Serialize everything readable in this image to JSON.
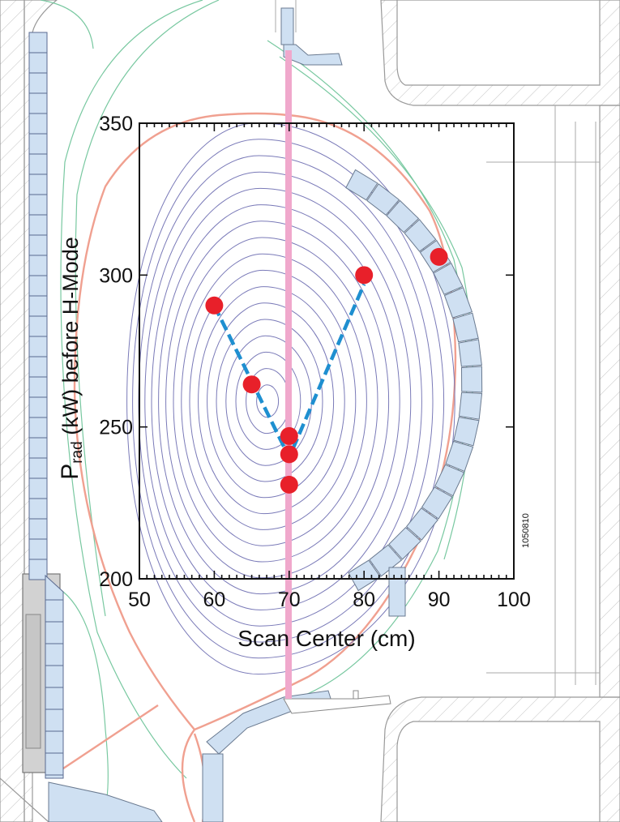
{
  "chart_data": {
    "type": "scatter",
    "xlabel": "Scan Center (cm)",
    "ylabel_main": "P",
    "ylabel_sub": "rad",
    "ylabel_rest": " (kW) before H-Mode",
    "xlim": [
      50,
      100
    ],
    "ylim": [
      200,
      350
    ],
    "xticks": [
      50,
      60,
      70,
      80,
      90,
      100
    ],
    "yticks": [
      200,
      250,
      300,
      350
    ],
    "points": [
      {
        "x": 60,
        "y": 290
      },
      {
        "x": 65,
        "y": 264
      },
      {
        "x": 70,
        "y": 247
      },
      {
        "x": 70,
        "y": 241
      },
      {
        "x": 70,
        "y": 231
      },
      {
        "x": 80,
        "y": 300
      },
      {
        "x": 90,
        "y": 306
      }
    ],
    "fit_line": [
      {
        "x": 60,
        "y": 290
      },
      {
        "x": 70,
        "y": 240
      },
      {
        "x": 80,
        "y": 297
      }
    ],
    "reference_x": 70,
    "annotation": "1050810",
    "colors": {
      "points": "#e8202a",
      "fit_line": "#1e8fd0",
      "reference": "#f0a8cc",
      "flux_contours": "#7a7ab8",
      "separatrix": "#f0a090",
      "scrape_off": "#78c8a0",
      "tiles": "#cfe0f2",
      "walls": "#8a8a8a"
    }
  }
}
